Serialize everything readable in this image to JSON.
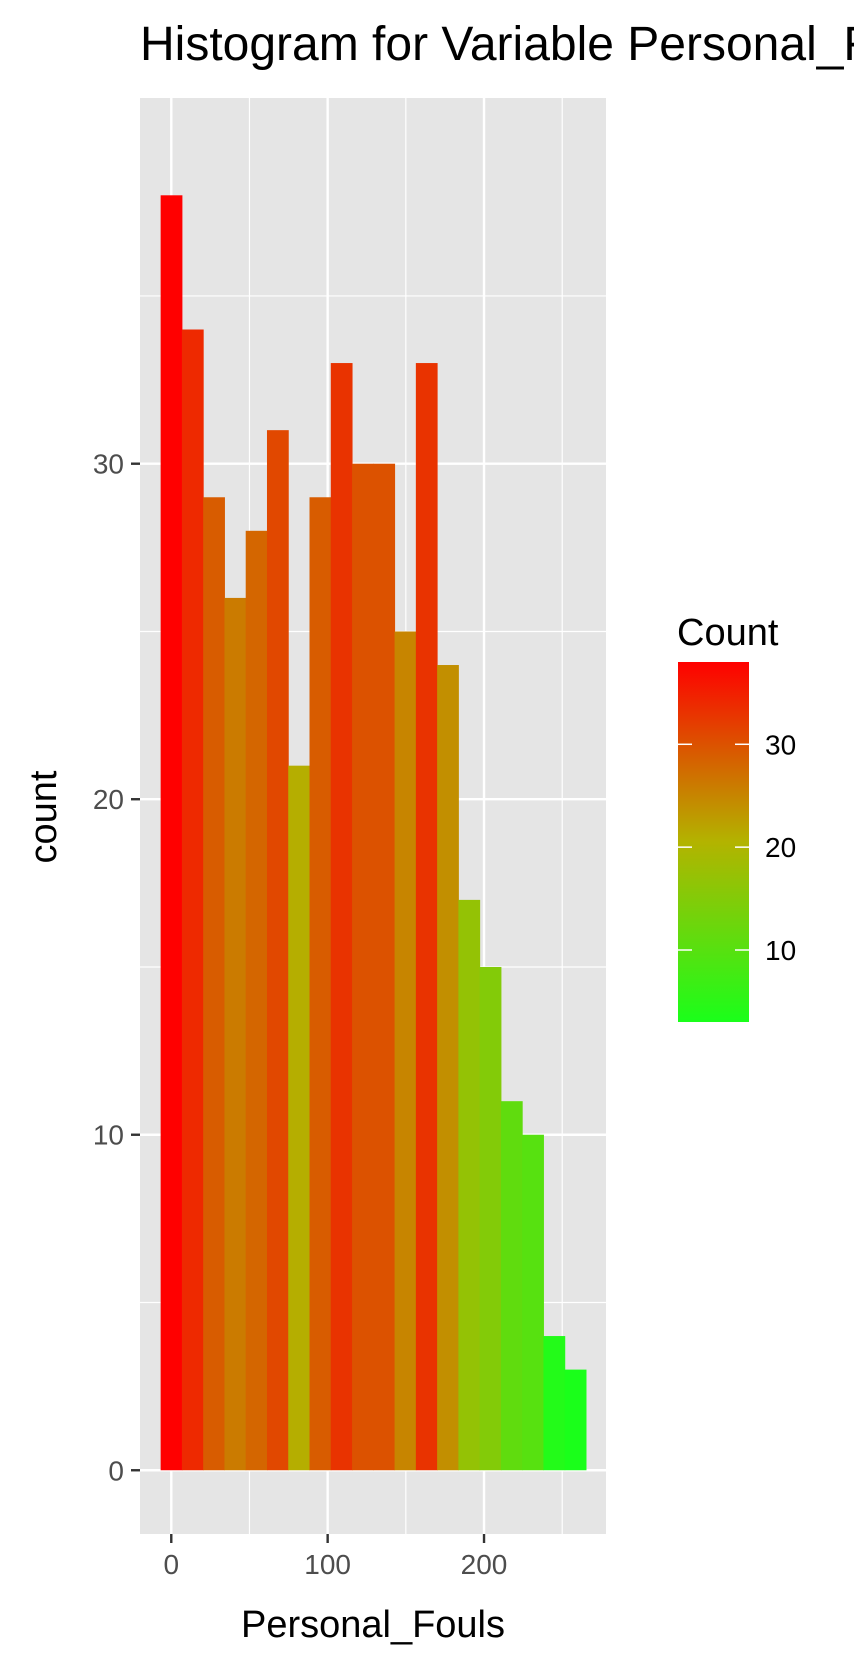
{
  "chart_data": {
    "type": "bar",
    "title": "Histogram for Variable Personal_Fouls",
    "xlabel": "Personal_Fouls",
    "ylabel": "count",
    "xlim": [
      -20,
      278
    ],
    "ylim": [
      -1.9,
      40.9
    ],
    "x_ticks": [
      0,
      100,
      200
    ],
    "y_ticks": [
      0,
      10,
      20,
      30
    ],
    "bin_width": 13.6,
    "bins": [
      {
        "x": 0.0,
        "count": 38
      },
      {
        "x": 13.6,
        "count": 34
      },
      {
        "x": 27.2,
        "count": 29
      },
      {
        "x": 40.8,
        "count": 26
      },
      {
        "x": 54.4,
        "count": 28
      },
      {
        "x": 68.0,
        "count": 31
      },
      {
        "x": 81.6,
        "count": 21
      },
      {
        "x": 95.2,
        "count": 29
      },
      {
        "x": 108.8,
        "count": 33
      },
      {
        "x": 122.4,
        "count": 30
      },
      {
        "x": 136.0,
        "count": 30
      },
      {
        "x": 149.6,
        "count": 25
      },
      {
        "x": 163.2,
        "count": 33
      },
      {
        "x": 176.8,
        "count": 24
      },
      {
        "x": 190.4,
        "count": 17
      },
      {
        "x": 204.0,
        "count": 15
      },
      {
        "x": 217.6,
        "count": 11
      },
      {
        "x": 231.2,
        "count": 10
      },
      {
        "x": 244.8,
        "count": 4
      },
      {
        "x": 258.4,
        "count": 3
      }
    ],
    "grid": true,
    "legend": {
      "title": "Count",
      "placement": "right",
      "type": "colorbar",
      "range": [
        3,
        38
      ],
      "ticks": [
        10,
        20,
        30
      ],
      "low_color": "#1aff1a",
      "mid_color": "#b3b300",
      "high_color": "#ff0000"
    },
    "panel_color": "#e5e5e5"
  }
}
